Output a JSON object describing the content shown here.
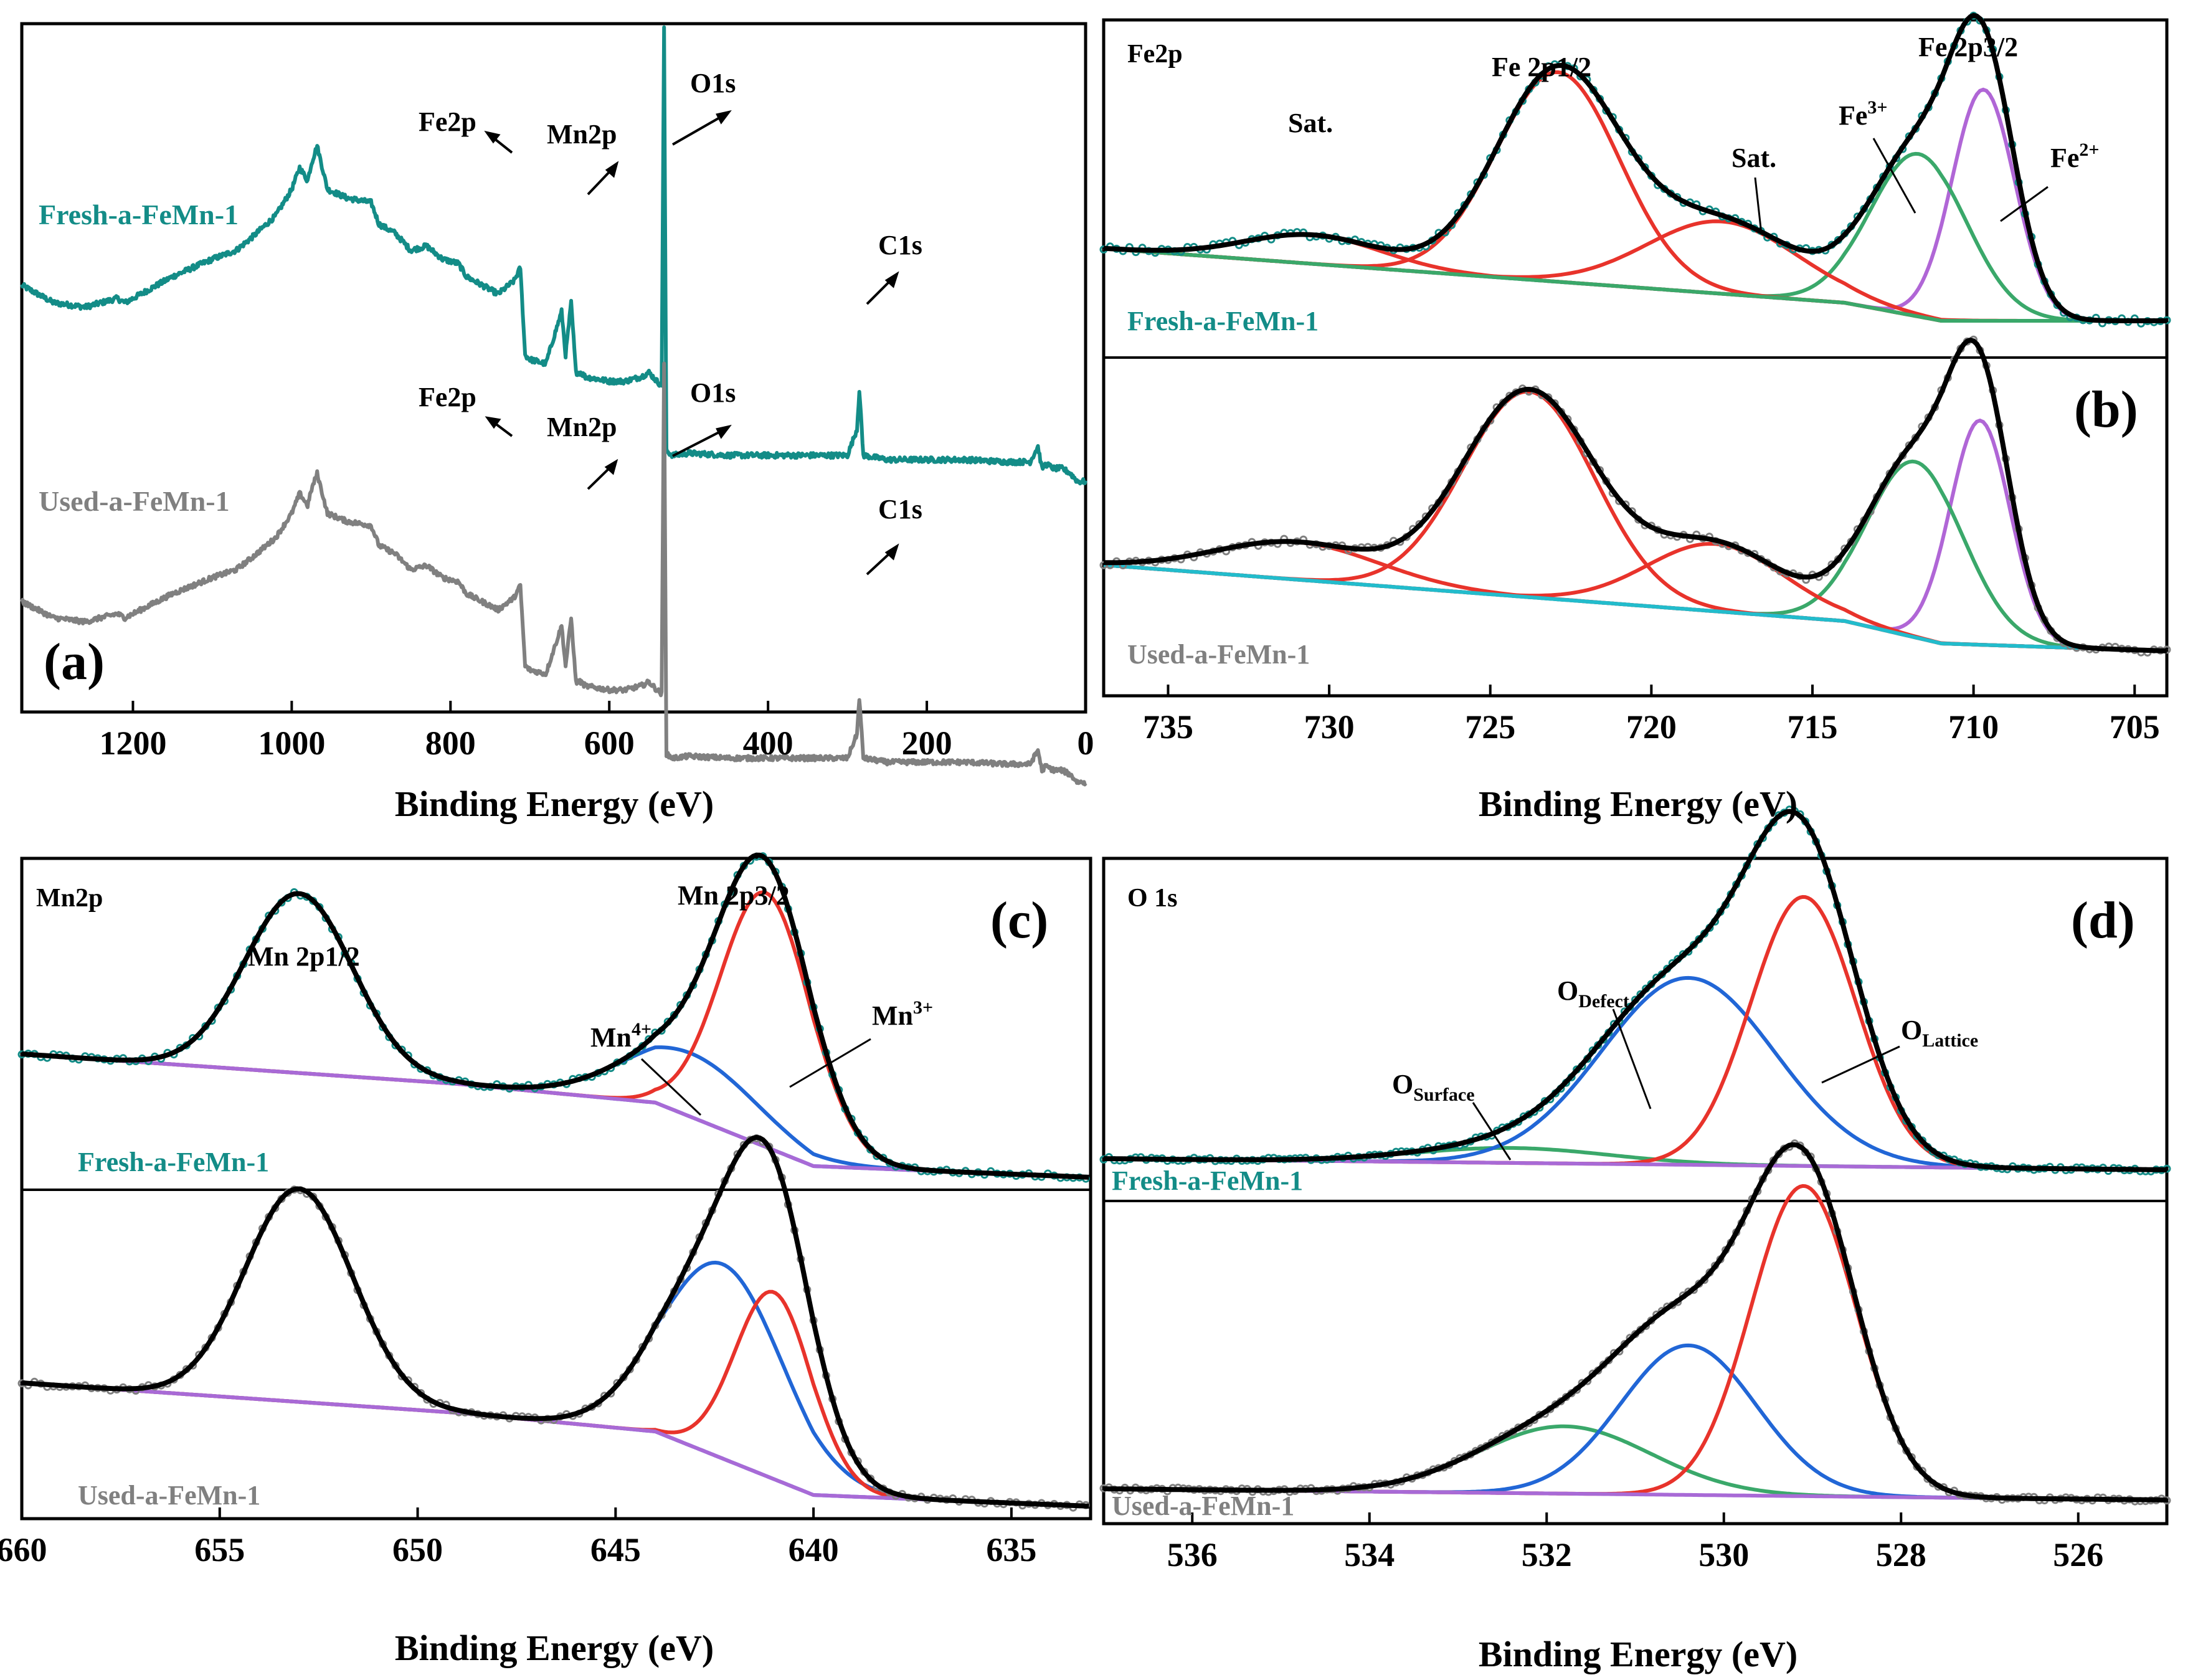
{
  "colors": {
    "fresh": "#138c87",
    "used": "#808080",
    "fit": "#000000",
    "red": "#e8332b",
    "green": "#3aa86a",
    "purple": "#b066d6",
    "blue": "#2166d6",
    "cyan": "#22bccc",
    "bgPurple": "#a86ad6"
  },
  "chart_data": [
    {
      "id": "a",
      "type": "line",
      "panel_label": "(a)",
      "xlabel": "Binding Energy (eV)",
      "xlim": [
        1340,
        0
      ],
      "xticks": [
        "1200",
        "1000",
        "800",
        "600",
        "400",
        "200",
        "0"
      ],
      "series": [
        {
          "name": "Fresh-a-FeMn-1",
          "x": [
            1340,
            1300,
            1260,
            1220,
            1210,
            1190,
            1150,
            1100,
            1070,
            1050,
            1020,
            1000,
            990,
            980,
            975,
            968,
            955,
            930,
            900,
            890,
            870,
            850,
            830,
            810,
            790,
            780,
            760,
            740,
            720,
            712,
            706,
            700,
            680,
            660,
            655,
            648,
            642,
            636,
            630,
            600,
            580,
            560,
            550,
            540,
            534,
            531,
            528,
            520,
            500,
            450,
            400,
            350,
            300,
            288,
            285,
            280,
            250,
            200,
            150,
            100,
            70,
            60,
            55,
            50,
            40,
            30,
            20,
            10,
            0
          ],
          "y": [
            0.66,
            0.62,
            0.61,
            0.63,
            0.62,
            0.64,
            0.68,
            0.72,
            0.74,
            0.77,
            0.82,
            0.88,
            0.93,
            0.9,
            0.94,
            0.98,
            0.88,
            0.86,
            0.85,
            0.8,
            0.78,
            0.74,
            0.75,
            0.72,
            0.71,
            0.68,
            0.66,
            0.64,
            0.67,
            0.7,
            0.5,
            0.49,
            0.48,
            0.6,
            0.5,
            0.62,
            0.46,
            0.46,
            0.45,
            0.44,
            0.44,
            0.45,
            0.46,
            0.44,
            0.43,
            1.25,
            0.28,
            0.27,
            0.275,
            0.27,
            0.27,
            0.27,
            0.27,
            0.33,
            0.42,
            0.27,
            0.26,
            0.26,
            0.26,
            0.255,
            0.255,
            0.29,
            0.24,
            0.25,
            0.24,
            0.24,
            0.23,
            0.21,
            0.21
          ]
        },
        {
          "name": "Used-a-FeMn-1",
          "x": [
            1340,
            1300,
            1260,
            1220,
            1210,
            1190,
            1150,
            1100,
            1070,
            1050,
            1020,
            1000,
            990,
            980,
            975,
            968,
            955,
            930,
            900,
            890,
            870,
            850,
            830,
            810,
            790,
            780,
            760,
            740,
            720,
            712,
            706,
            700,
            680,
            660,
            655,
            648,
            642,
            636,
            630,
            600,
            580,
            560,
            550,
            540,
            534,
            531,
            528,
            520,
            500,
            450,
            400,
            350,
            300,
            288,
            285,
            280,
            250,
            200,
            150,
            100,
            70,
            60,
            55,
            50,
            40,
            30,
            20,
            10,
            0
          ],
          "y": [
            0.66,
            0.62,
            0.61,
            0.63,
            0.62,
            0.64,
            0.68,
            0.72,
            0.74,
            0.77,
            0.82,
            0.88,
            0.93,
            0.9,
            0.94,
            0.98,
            0.88,
            0.86,
            0.85,
            0.8,
            0.78,
            0.74,
            0.75,
            0.72,
            0.71,
            0.68,
            0.66,
            0.64,
            0.67,
            0.7,
            0.5,
            0.49,
            0.48,
            0.6,
            0.5,
            0.62,
            0.46,
            0.46,
            0.45,
            0.44,
            0.44,
            0.45,
            0.46,
            0.44,
            0.43,
            1.25,
            0.28,
            0.27,
            0.275,
            0.27,
            0.27,
            0.27,
            0.27,
            0.33,
            0.42,
            0.27,
            0.26,
            0.26,
            0.26,
            0.255,
            0.255,
            0.29,
            0.24,
            0.25,
            0.24,
            0.24,
            0.23,
            0.21,
            0.21
          ]
        }
      ],
      "series_labels": [
        "Fresh-a-FeMn-1",
        "Used-a-FeMn-1"
      ],
      "annotations": [
        {
          "text": "Fe2p",
          "series": 0
        },
        {
          "text": "Mn2p",
          "series": 0
        },
        {
          "text": "O1s",
          "series": 0
        },
        {
          "text": "C1s",
          "series": 0
        },
        {
          "text": "Fe2p",
          "series": 1
        },
        {
          "text": "Mn2p",
          "series": 1
        },
        {
          "text": "O1s",
          "series": 1
        },
        {
          "text": "C1s",
          "series": 1
        }
      ]
    },
    {
      "id": "b",
      "type": "line",
      "panel_label": "(b)",
      "title": "Fe2p",
      "xlabel": "Binding Energy (eV)",
      "xlim": [
        737,
        704
      ],
      "xticks": [
        735,
        730,
        725,
        720,
        715,
        710,
        705
      ],
      "panels": [
        {
          "label": "Fresh-a-FeMn-1",
          "background": {
            "x": [
              737,
              714,
              711,
              704
            ],
            "y": [
              0.2,
              0.05,
              0.0,
              0.0
            ]
          },
          "peaks": [
            {
              "name": "Fe2+",
              "center": 709.7,
              "height": 0.64,
              "fwhm": 2.3,
              "color": "purple"
            },
            {
              "name": "Fe3+",
              "center": 711.7,
              "height": 0.45,
              "fwhm": 3.5,
              "color": "green"
            },
            {
              "name": "Sat.",
              "center": 717.8,
              "height": 0.2,
              "fwhm": 5.5,
              "color": "red"
            },
            {
              "name": "Fe 2p1/2",
              "center": 722.9,
              "height": 0.58,
              "fwhm": 4.5,
              "color": "red"
            },
            {
              "name": "Sat.",
              "center": 730.5,
              "height": 0.08,
              "fwhm": 5.0,
              "color": "red"
            }
          ],
          "annotations": [
            "Sat.",
            "Fe 2p1/2",
            "Sat.",
            "Fe 2p3/2",
            "Fe",
            "3+",
            "Fe",
            "2+"
          ]
        },
        {
          "label": "Used-a-FeMn-1",
          "background": {
            "x": [
              737,
              714,
              711,
              704
            ],
            "y": [
              0.23,
              0.08,
              0.02,
              0.0
            ]
          },
          "peaks": [
            {
              "name": "Fe2+",
              "center": 709.8,
              "height": 0.6,
              "fwhm": 2.2,
              "color": "purple"
            },
            {
              "name": "Fe3+",
              "center": 711.8,
              "height": 0.47,
              "fwhm": 3.5,
              "color": "green"
            },
            {
              "name": "Sat.",
              "center": 718.0,
              "height": 0.18,
              "fwhm": 5.0,
              "color": "red"
            },
            {
              "name": "Fe 2p1/2",
              "center": 723.8,
              "height": 0.55,
              "fwhm": 4.8,
              "color": "red"
            },
            {
              "name": "Sat.",
              "center": 731.0,
              "height": 0.1,
              "fwhm": 6.0,
              "color": "red"
            }
          ]
        }
      ]
    },
    {
      "id": "c",
      "type": "line",
      "panel_label": "(c)",
      "title": "Mn2p",
      "xlabel": "Binding Energy (eV)",
      "xlim": [
        660,
        633
      ],
      "xticks": [
        660,
        655,
        650,
        645,
        640,
        635
      ],
      "panels": [
        {
          "label": "Fresh-a-FeMn-1",
          "background": {
            "x": [
              660,
              649,
              644,
              640,
              633
            ],
            "y": [
              0.33,
              0.25,
              0.2,
              0.03,
              0.0
            ]
          },
          "peaks": [
            {
              "name": "Mn 2p1/2",
              "center": 653.0,
              "height": 0.48,
              "fwhm": 3.2,
              "color": "blue"
            },
            {
              "name": "Mn4+",
              "center": 643.1,
              "height": 0.17,
              "fwhm": 4.0,
              "color": "blue"
            },
            {
              "name": "Mn3+",
              "center": 641.2,
              "height": 0.68,
              "fwhm": 2.7,
              "color": "red"
            }
          ],
          "annotations": [
            "Mn 2p1/2",
            "Mn 2p3/2",
            "Mn",
            "4+",
            "Mn",
            "3+"
          ]
        },
        {
          "label": "Used-a-FeMn-1",
          "background": {
            "x": [
              660,
              649,
              644,
              640,
              633
            ],
            "y": [
              0.33,
              0.25,
              0.2,
              0.03,
              0.0
            ]
          },
          "peaks": [
            {
              "name": "Mn 2p1/2",
              "center": 653.0,
              "height": 0.57,
              "fwhm": 3.2,
              "color": "blue"
            },
            {
              "name": "Mn4+",
              "center": 642.3,
              "height": 0.52,
              "fwhm": 3.6,
              "color": "blue"
            },
            {
              "name": "Mn3+",
              "center": 641.0,
              "height": 0.5,
              "fwhm": 2.3,
              "color": "red"
            }
          ]
        }
      ]
    },
    {
      "id": "d",
      "type": "line",
      "panel_label": "(d)",
      "title": "O 1s",
      "xlabel": "Binding Energy (eV)",
      "xlim": [
        537,
        525
      ],
      "xticks": [
        536,
        534,
        532,
        530,
        528,
        526
      ],
      "panels": [
        {
          "label": "Fresh-a-FeMn-1",
          "background": {
            "x": [
              537,
              525
            ],
            "y": [
              0.03,
              0.0
            ]
          },
          "peaks": [
            {
              "name": "OSurface",
              "center": 532.4,
              "height": 0.04,
              "fwhm": 2.6,
              "color": "green"
            },
            {
              "name": "ODefect",
              "center": 530.4,
              "height": 0.5,
              "fwhm": 2.3,
              "color": "blue"
            },
            {
              "name": "OLattice",
              "center": 529.1,
              "height": 0.72,
              "fwhm": 1.4,
              "color": "red"
            }
          ],
          "annotations": [
            "O",
            "Surface",
            "O",
            "Defect",
            "O",
            "Lattice"
          ]
        },
        {
          "label": "Used-a-FeMn-1",
          "background": {
            "x": [
              537,
              525
            ],
            "y": [
              0.03,
              0.0
            ]
          },
          "peaks": [
            {
              "name": "OSurface",
              "center": 531.8,
              "height": 0.18,
              "fwhm": 2.3,
              "color": "green"
            },
            {
              "name": "ODefect",
              "center": 530.4,
              "height": 0.4,
              "fwhm": 1.8,
              "color": "blue"
            },
            {
              "name": "OLattice",
              "center": 529.1,
              "height": 0.83,
              "fwhm": 1.4,
              "color": "red"
            }
          ]
        }
      ]
    }
  ]
}
